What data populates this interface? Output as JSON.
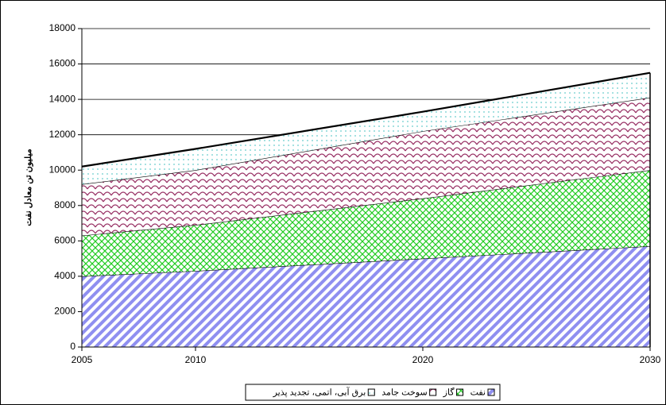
{
  "chart_data": {
    "type": "stacked_area",
    "y_label": "میلیون تن معادل نفت",
    "x": [
      2005,
      2010,
      2020,
      2030
    ],
    "xlim": [
      2005,
      2030
    ],
    "xticks": [
      2005,
      2010,
      2020,
      2030
    ],
    "ylim": [
      0,
      18000
    ],
    "yticks": [
      0,
      2000,
      4000,
      6000,
      8000,
      10000,
      12000,
      14000,
      16000,
      18000
    ],
    "grid": true,
    "series": [
      {
        "name": "نفت",
        "color": "#8f8ff0",
        "values": [
          4000,
          4300,
          5000,
          5700
        ]
      },
      {
        "name": "گاز",
        "color": "#22cc22",
        "values": [
          2300,
          2600,
          3400,
          4300
        ]
      },
      {
        "name": "سوخت جامد",
        "color": "#993366",
        "values": [
          2900,
          3100,
          3800,
          4100
        ]
      },
      {
        "name": "برق آبی، اتمی، تجدید پذیر",
        "color": "#66cccc",
        "values": [
          1000,
          1200,
          1100,
          1400
        ]
      }
    ]
  }
}
